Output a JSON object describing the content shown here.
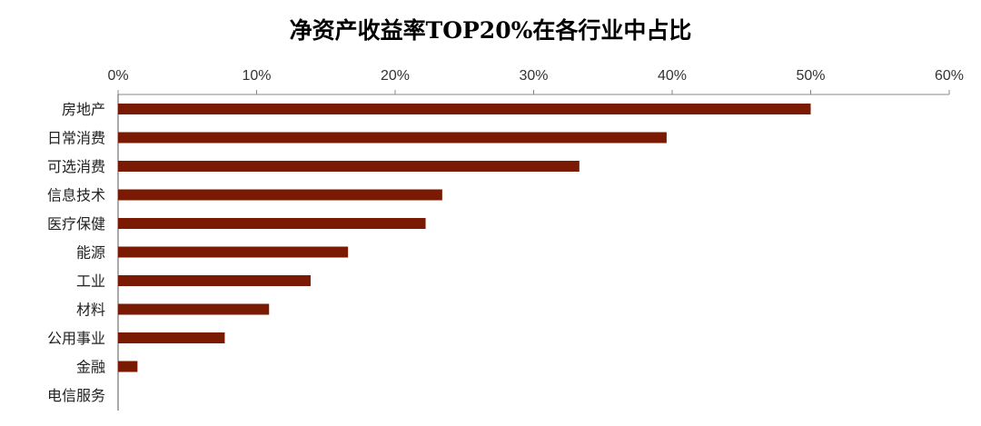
{
  "chart_data": {
    "type": "bar",
    "orientation": "horizontal",
    "title": "净资产收益率TOP20%在各行业中占比",
    "categories": [
      "房地产",
      "日常消费",
      "可选消费",
      "信息技术",
      "医疗保健",
      "能源",
      "工业",
      "材料",
      "公用事业",
      "金融",
      "电信服务"
    ],
    "values": [
      0.5,
      0.396,
      0.333,
      0.234,
      0.222,
      0.166,
      0.139,
      0.109,
      0.077,
      0.014,
      0.0
    ],
    "xlim": [
      0,
      0.6
    ],
    "x_ticks": [
      "0%",
      "10%",
      "20%",
      "30%",
      "40%",
      "50%",
      "60%"
    ],
    "x_axis_position": "top",
    "grid": false,
    "legend": "none",
    "bar_color": "#7B1A02"
  }
}
